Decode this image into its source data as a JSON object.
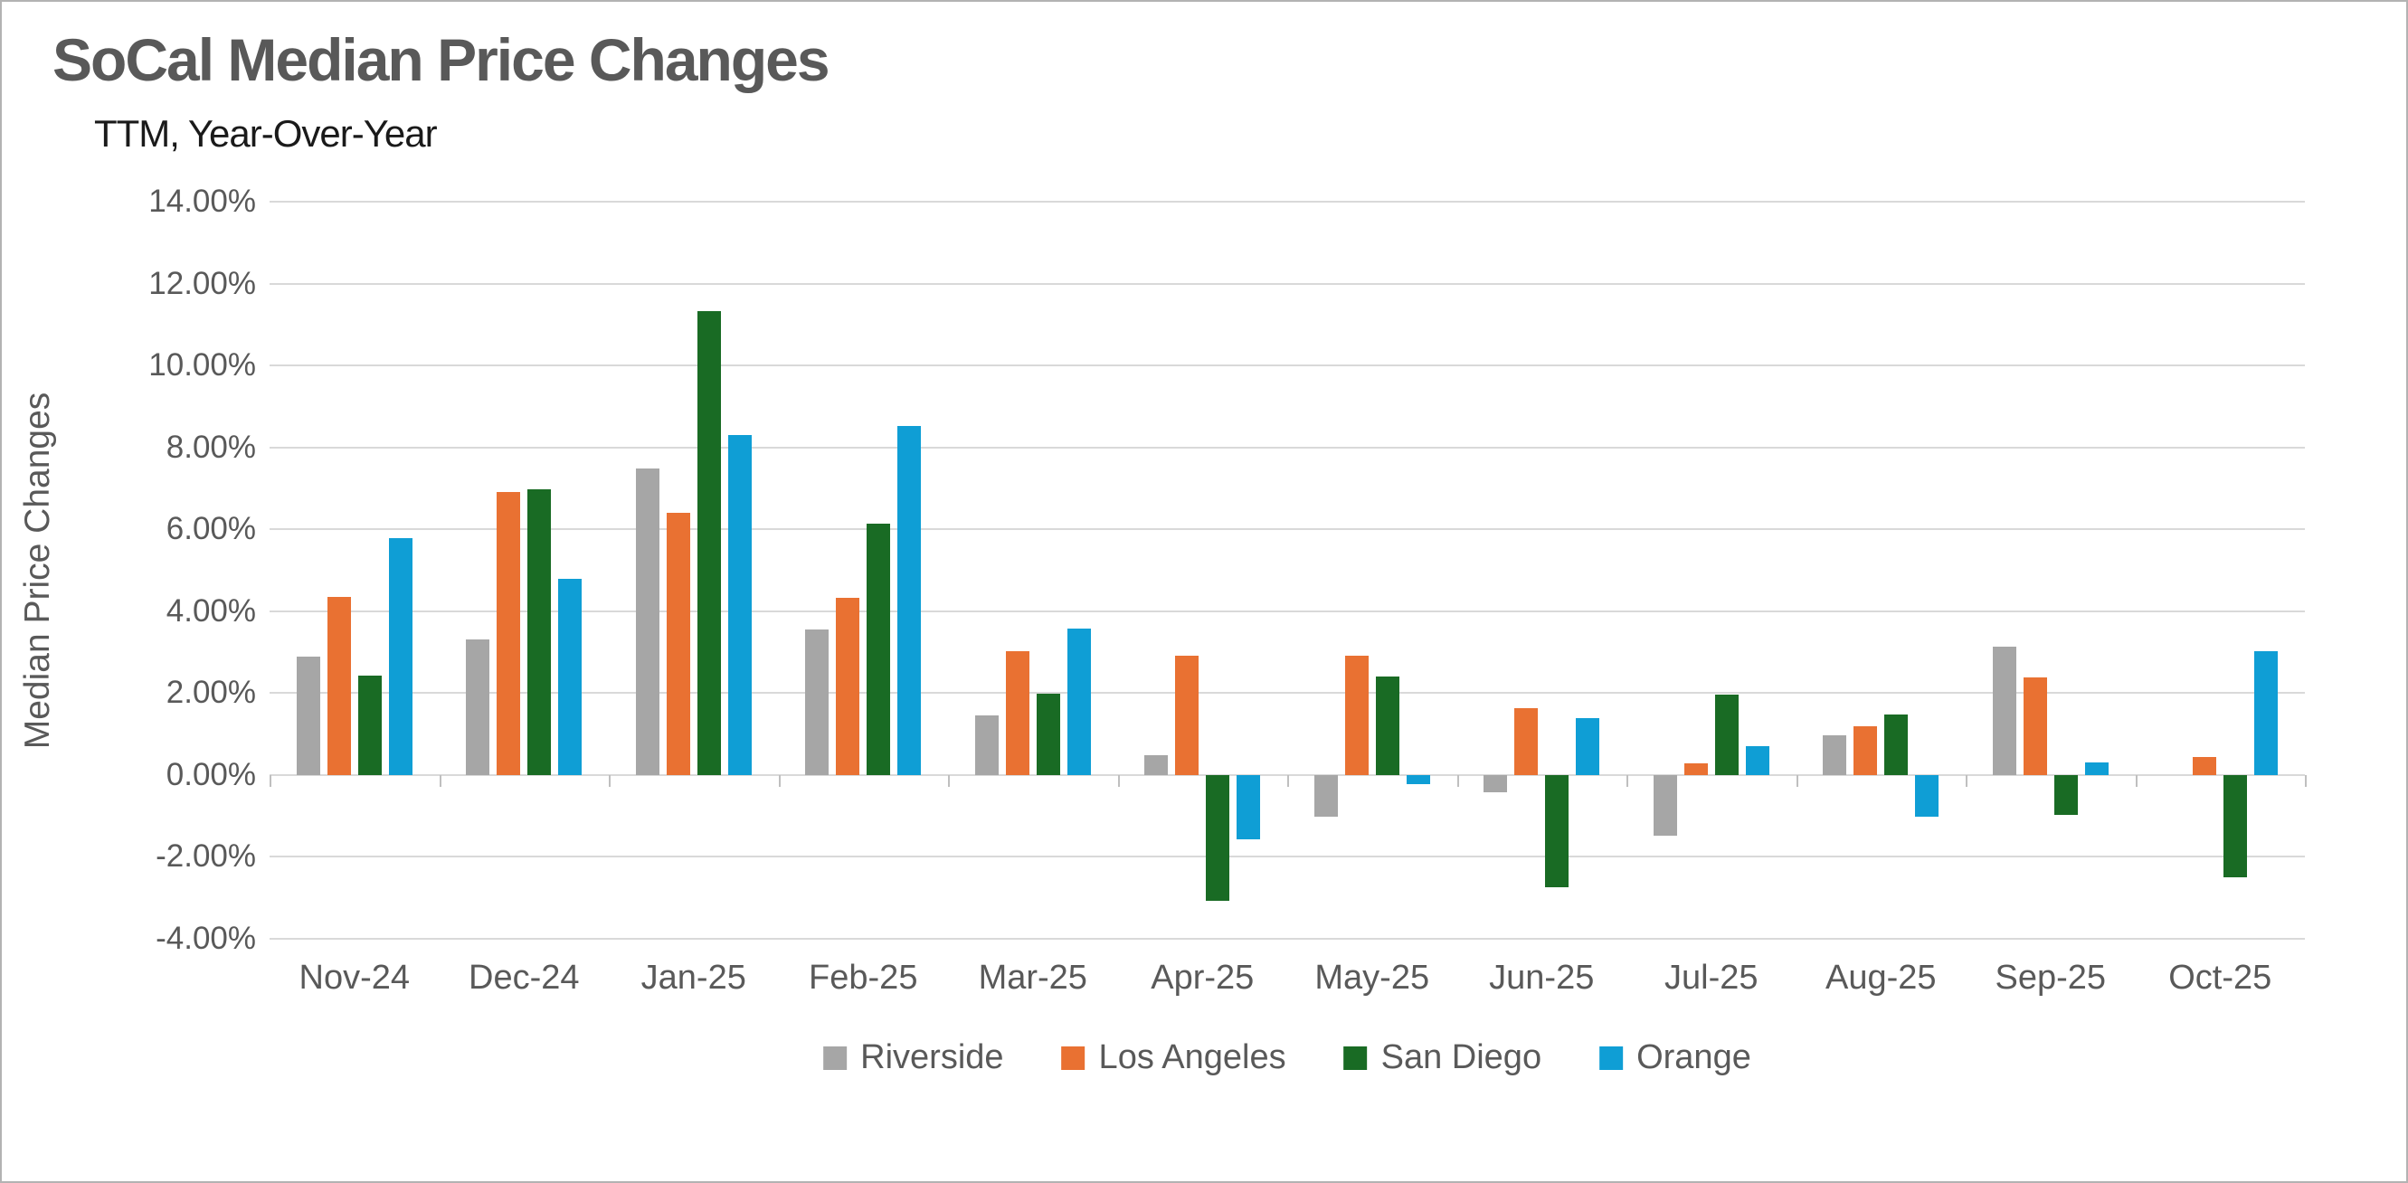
{
  "header": {
    "title": "SoCal Median Price Changes",
    "subtitle": "TTM, Year-Over-Year"
  },
  "axes": {
    "y_title": "Median Price Changes",
    "y_tick_labels": [
      "14.00%",
      "12.00%",
      "10.00%",
      "8.00%",
      "6.00%",
      "4.00%",
      "2.00%",
      "0.00%",
      "-2.00%",
      "-4.00%"
    ],
    "x_tick_labels": [
      "Nov-24",
      "Dec-24",
      "Jan-25",
      "Feb-25",
      "Mar-25",
      "Apr-25",
      "May-25",
      "Jun-25",
      "Jul-25",
      "Aug-25",
      "Sep-25",
      "Oct-25"
    ]
  },
  "legend": {
    "items": [
      "Riverside",
      "Los Angeles",
      "San Diego",
      "Orange"
    ]
  },
  "colors": {
    "riverside": "#A6A6A6",
    "los_angeles": "#E97132",
    "san_diego": "#196B24",
    "orange_county": "#0F9ED5",
    "gridline": "#D9D9D9",
    "axis_line": "#D9D9D9",
    "category_tick": "#BFBFBF",
    "title_text": "#595959",
    "subtitle_text": "#1A1A1A",
    "axis_text": "#595959",
    "legend_text": "#595959",
    "background": "#FFFFFF",
    "frame_border": "#B3B3B3"
  },
  "chart_data": {
    "type": "bar",
    "title": "SoCal Median Price Changes",
    "subtitle": "TTM, Year-Over-Year",
    "xlabel": "",
    "ylabel": "Median Price Changes",
    "ylim": [
      -4,
      14
    ],
    "y_tick_step": 2,
    "grid": true,
    "legend_position": "bottom",
    "categories": [
      "Nov-24",
      "Dec-24",
      "Jan-25",
      "Feb-25",
      "Mar-25",
      "Apr-25",
      "May-25",
      "Jun-25",
      "Jul-25",
      "Aug-25",
      "Sep-25",
      "Oct-25"
    ],
    "series": [
      {
        "name": "Riverside",
        "color": "#A6A6A6",
        "values": [
          2.88,
          3.3,
          7.49,
          3.55,
          1.45,
          0.49,
          -1.02,
          -0.43,
          -1.49,
          0.97,
          3.13,
          0.0
        ]
      },
      {
        "name": "Los Angeles",
        "color": "#E97132",
        "values": [
          4.35,
          6.91,
          6.41,
          4.32,
          3.03,
          2.92,
          2.92,
          1.63,
          0.28,
          1.18,
          2.38,
          0.43
        ]
      },
      {
        "name": "San Diego",
        "color": "#196B24",
        "values": [
          2.43,
          6.97,
          11.32,
          6.13,
          1.99,
          -3.07,
          2.41,
          -2.75,
          1.96,
          1.48,
          -0.97,
          -2.5
        ]
      },
      {
        "name": "Orange",
        "color": "#0F9ED5",
        "values": [
          5.78,
          4.78,
          8.31,
          8.53,
          3.57,
          -1.56,
          -0.22,
          1.38,
          0.71,
          -1.01,
          0.31,
          3.02
        ]
      }
    ]
  }
}
